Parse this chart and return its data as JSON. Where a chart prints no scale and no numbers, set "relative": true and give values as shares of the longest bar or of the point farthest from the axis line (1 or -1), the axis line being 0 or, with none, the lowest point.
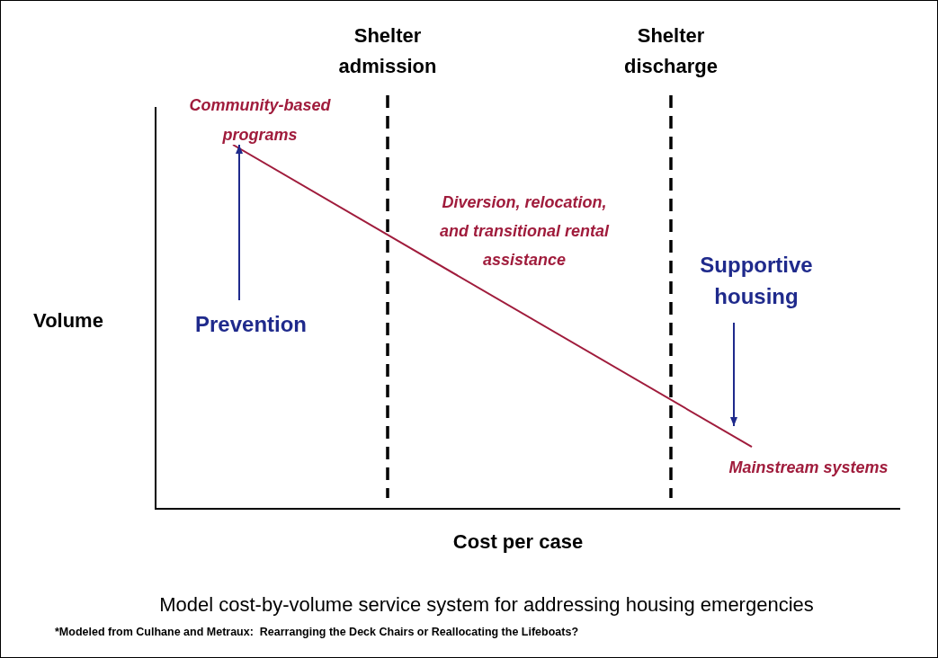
{
  "chart_data": {
    "type": "line",
    "relative": true,
    "title": "Model cost-by-volume service system for addressing housing emergencies",
    "xlabel": "Cost per case",
    "ylabel": "Volume",
    "tick_labels": false,
    "legend": false,
    "marker": "none",
    "categories": [
      null,
      null
    ],
    "series": [
      {
        "color": "#a01c3c",
        "values": [
          1,
          0.17
        ]
      }
    ],
    "ref_lines": [
      {
        "axis": "x",
        "label": "Shelter admission",
        "color": "#000000",
        "line_style": "dashed"
      },
      {
        "axis": "x",
        "label": "Shelter discharge",
        "color": "#000000",
        "line_style": "dashed"
      }
    ],
    "annotations": [
      "Community-based programs",
      "Mainstream systems",
      "Diversion, relocation, and transitional rental assistance",
      "Prevention",
      "Supportive housing",
      "*Modeled from Culhane and Metraux:  Rearranging the Deck Chairs or Reallocating the Lifeboats?"
    ]
  }
}
